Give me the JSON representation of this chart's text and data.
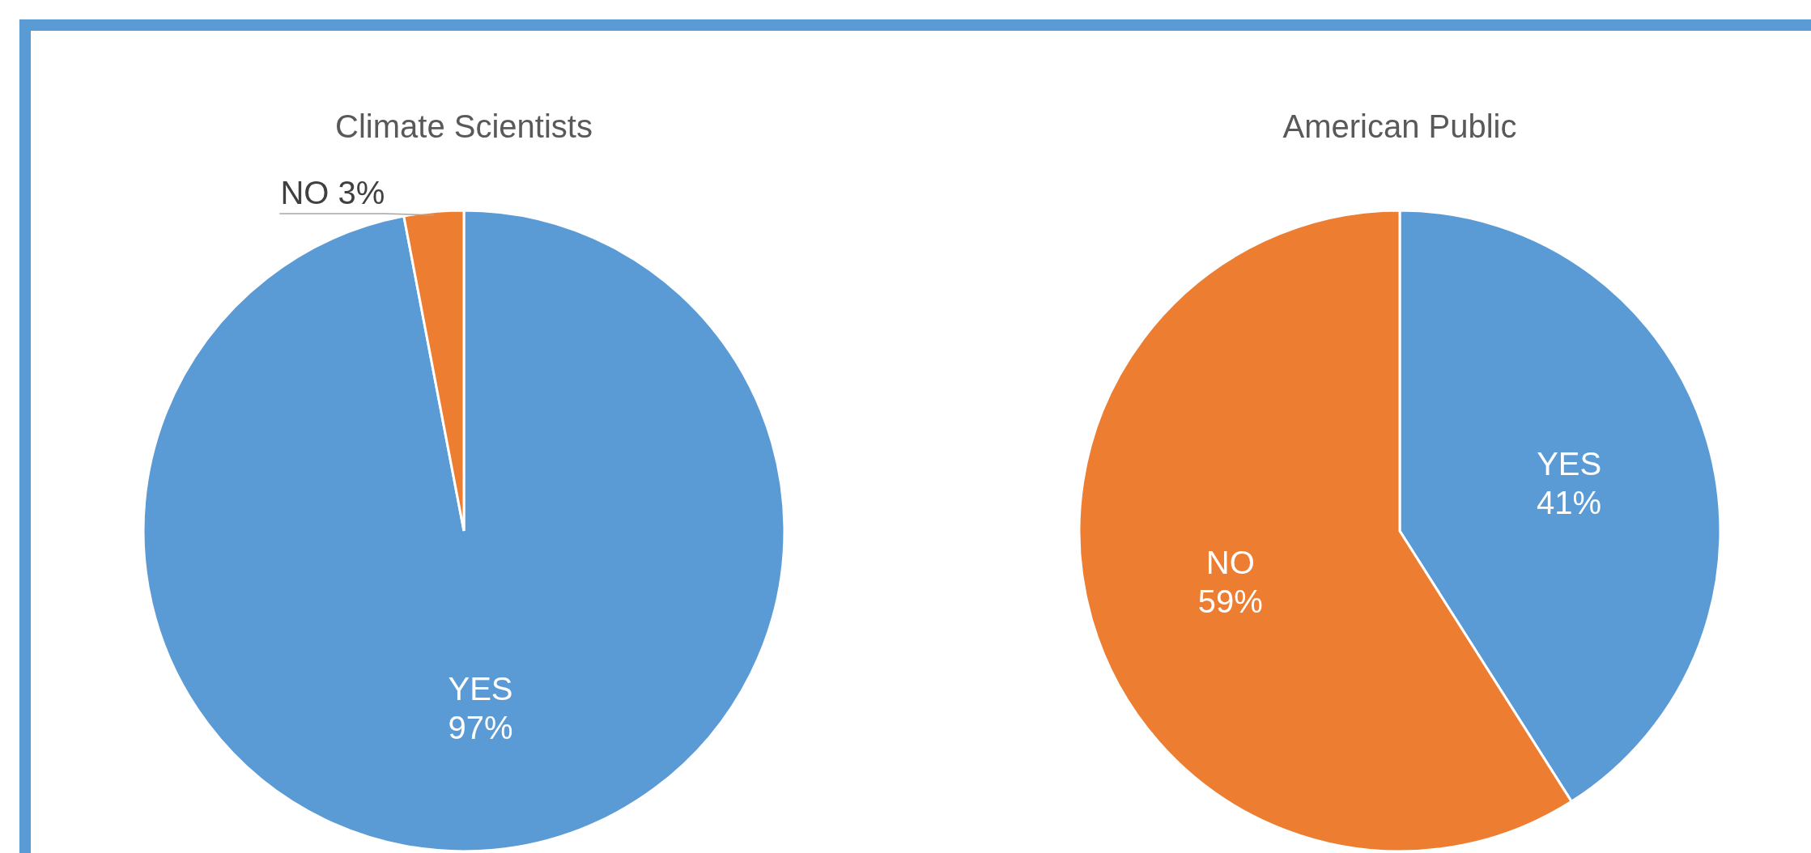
{
  "chart_data": [
    {
      "type": "pie",
      "title": "Climate Scientists",
      "categories": [
        "YES",
        "NO"
      ],
      "values": [
        97,
        3
      ],
      "colors": [
        "#5b9bd5",
        "#ed7d31"
      ],
      "value_labels": [
        "97%",
        "3%"
      ]
    },
    {
      "type": "pie",
      "title": "American Public",
      "categories": [
        "YES",
        "NO"
      ],
      "values": [
        41,
        59
      ],
      "colors": [
        "#5b9bd5",
        "#ed7d31"
      ],
      "value_labels": [
        "41%",
        "59%"
      ]
    }
  ]
}
